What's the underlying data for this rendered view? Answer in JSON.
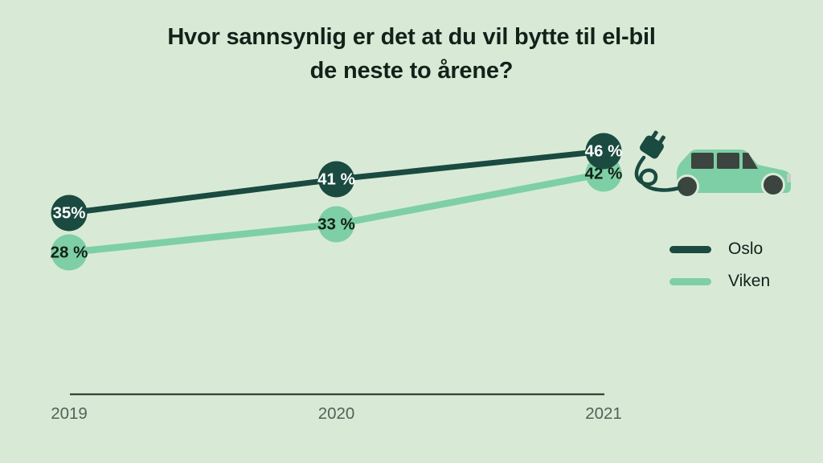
{
  "title": "Hvor sannsynlig er det at du vil bytte til el-bil\nde neste to årene?",
  "chart_data": {
    "type": "line",
    "title": "Hvor sannsynlig er det at du vil bytte til el-bil de neste to årene?",
    "categories": [
      "2019",
      "2020",
      "2021"
    ],
    "series": [
      {
        "name": "Oslo",
        "values": [
          35,
          41,
          46
        ],
        "labels": [
          "35%",
          "41 %",
          "46 %"
        ],
        "color": "#1a4a40",
        "label_color": "#ffffff"
      },
      {
        "name": "Viken",
        "values": [
          28,
          33,
          42
        ],
        "labels": [
          "28 %",
          "33 %",
          "42 %"
        ],
        "color": "#7ecfa5",
        "label_color": "#14211a"
      }
    ],
    "xlabel": "",
    "ylabel": "",
    "ylim": [
      0,
      60
    ],
    "grid": false,
    "legend_position": "right",
    "annotations": [
      "electric-car-with-charging-plug illustration at top right"
    ]
  },
  "legend": {
    "items": [
      {
        "label": "Oslo",
        "color": "#1a4a40"
      },
      {
        "label": "Viken",
        "color": "#7ecfa5"
      }
    ]
  },
  "illustration": {
    "name": "electric-car-with-plug",
    "body_color": "#7ecfa5",
    "dark_color": "#3c443f",
    "plug_color": "#1a4a40",
    "headlight_color": "#c9cec9"
  },
  "colors": {
    "background": "#d8ead6",
    "title_text": "#14211a",
    "axis_line": "#1e2b24",
    "axis_label": "#546158"
  }
}
